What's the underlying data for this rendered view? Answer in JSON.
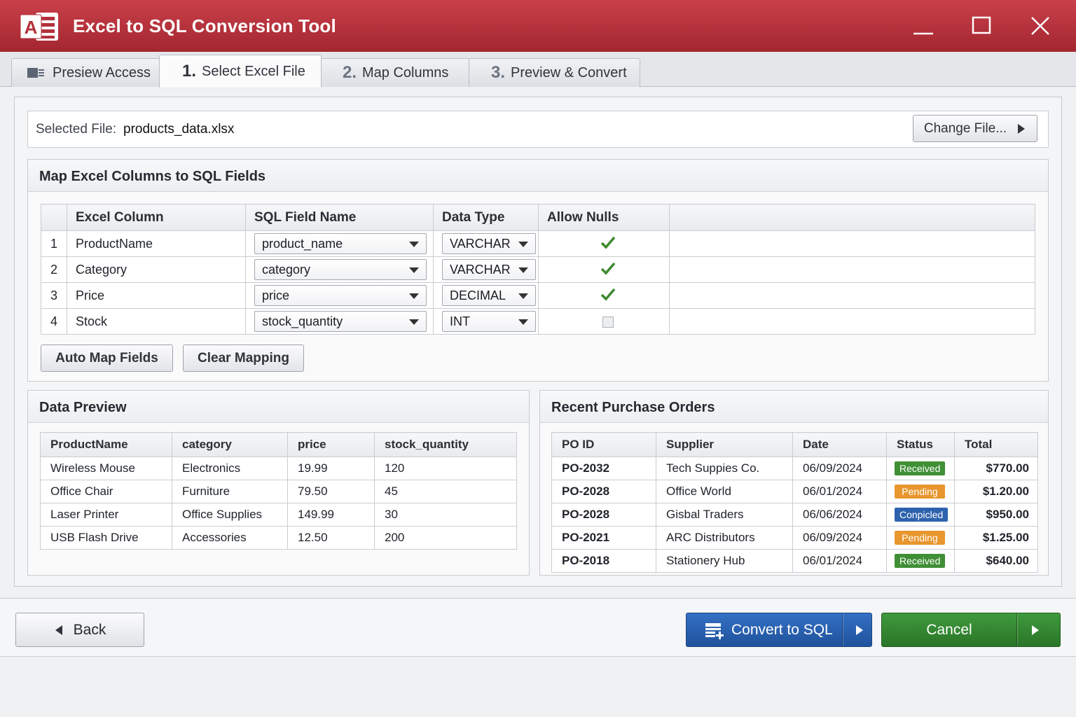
{
  "window": {
    "title": "Excel to SQL Conversion Tool",
    "app_icon": "access-icon",
    "colors": {
      "titlebar": "#b3313a",
      "primary": "#2862b4",
      "success": "#358a33"
    }
  },
  "tabs": [
    {
      "num": "",
      "label": "Presiew Access",
      "icon": "access-tab-icon"
    },
    {
      "num": "1.",
      "label": "Select Excel File",
      "active": true
    },
    {
      "num": "2.",
      "label": "Map Columns"
    },
    {
      "num": "3.",
      "label": "Preview & Convert"
    }
  ],
  "file": {
    "label": "Selected File:",
    "name": "products_data.xlsx",
    "change_button": "Change File..."
  },
  "mapping": {
    "title": "Map Excel Columns to SQL Fields",
    "headers": [
      "Excel Column",
      "SQL Field Name",
      "Data Type",
      "Allow Nulls"
    ],
    "rows": [
      {
        "num": "1",
        "excel": "ProductName",
        "field": "product_name",
        "type": "VARCHAR",
        "allow_nulls": true
      },
      {
        "num": "2",
        "excel": "Category",
        "field": "category",
        "type": "VARCHAR",
        "allow_nulls": true
      },
      {
        "num": "3",
        "excel": "Price",
        "field": "price",
        "type": "DECIMAL",
        "allow_nulls": true
      },
      {
        "num": "4",
        "excel": "Stock",
        "field": "stock_quantity",
        "type": "INT",
        "allow_nulls": false
      }
    ],
    "auto_map_button": "Auto Map Fields",
    "clear_button": "Clear Mapping"
  },
  "preview": {
    "title": "Data Preview",
    "headers": [
      "ProductName",
      "category",
      "price",
      "stock_quantity"
    ],
    "rows": [
      [
        "Wireless Mouse",
        "Electronics",
        "19.99",
        "120"
      ],
      [
        "Office Chair",
        "Furniture",
        "79.50",
        "45"
      ],
      [
        "Laser Printer",
        "Office Supplies",
        "149.99",
        "30"
      ],
      [
        "USB Flash Drive",
        "Accessories",
        "12.50",
        "200"
      ]
    ]
  },
  "orders": {
    "title": "Recent Purchase Orders",
    "headers": [
      "PO ID",
      "Supplier",
      "Date",
      "Status",
      "Total"
    ],
    "rows": [
      {
        "id": "PO-2032",
        "supplier": "Tech Suppies Co.",
        "date": "06/09/2024",
        "status": "Received",
        "status_color": "#3f8f35",
        "total": "$770.00"
      },
      {
        "id": "PO-2028",
        "supplier": "Office World",
        "date": "06/01/2024",
        "status": "Pending",
        "status_color": "#e8962e",
        "total": "$1.20.00"
      },
      {
        "id": "PO-2028",
        "supplier": "Gisbal Traders",
        "date": "06/06/2024",
        "status": "Conpicled",
        "status_color": "#2d62ae",
        "total": "$950.00"
      },
      {
        "id": "PO-2021",
        "supplier": "ARC Distributors",
        "date": "06/09/2024",
        "status": "Pending",
        "status_color": "#e8962e",
        "total": "$1.25.00"
      },
      {
        "id": "PO-2018",
        "supplier": "Stationery Hub",
        "date": "06/01/2024",
        "status": "Received",
        "status_color": "#3f8f35",
        "total": "$640.00"
      }
    ]
  },
  "footer": {
    "back_button": "Back",
    "convert_button": "Convert to SQL",
    "cancel_button": "Cancel"
  }
}
